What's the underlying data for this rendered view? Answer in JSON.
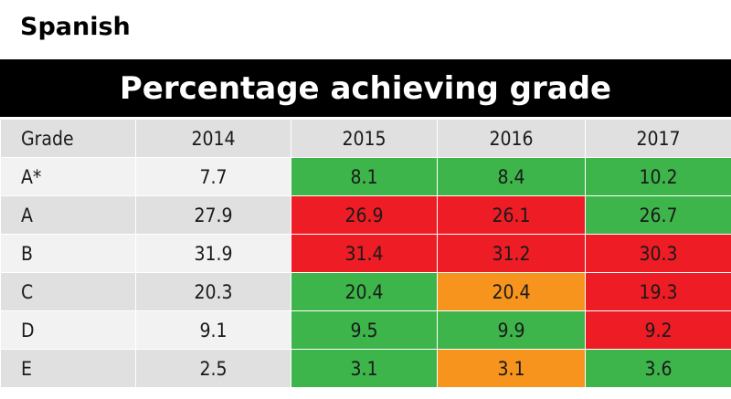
{
  "subject": "Spanish",
  "colors": {
    "green": "#3db54a",
    "red": "#ee1c25",
    "orange": "#f7941d",
    "header_bg": "#000000"
  },
  "chart_data": {
    "type": "table",
    "title": "Percentage achieving grade",
    "columns": [
      "Grade",
      "2014",
      "2015",
      "2016",
      "2017"
    ],
    "rows": [
      {
        "grade": "A*",
        "values": [
          "7.7",
          "8.1",
          "8.4",
          "10.2"
        ],
        "status": [
          null,
          "green",
          "green",
          "green"
        ]
      },
      {
        "grade": "A",
        "values": [
          "27.9",
          "26.9",
          "26.1",
          "26.7"
        ],
        "status": [
          null,
          "red",
          "red",
          "green"
        ]
      },
      {
        "grade": "B",
        "values": [
          "31.9",
          "31.4",
          "31.2",
          "30.3"
        ],
        "status": [
          null,
          "red",
          "red",
          "red"
        ]
      },
      {
        "grade": "C",
        "values": [
          "20.3",
          "20.4",
          "20.4",
          "19.3"
        ],
        "status": [
          null,
          "green",
          "orange",
          "red"
        ]
      },
      {
        "grade": "D",
        "values": [
          "9.1",
          "9.5",
          "9.9",
          "9.2"
        ],
        "status": [
          null,
          "green",
          "green",
          "red"
        ]
      },
      {
        "grade": "E",
        "values": [
          "2.5",
          "3.1",
          "3.1",
          "3.6"
        ],
        "status": [
          null,
          "green",
          "orange",
          "green"
        ]
      }
    ]
  }
}
